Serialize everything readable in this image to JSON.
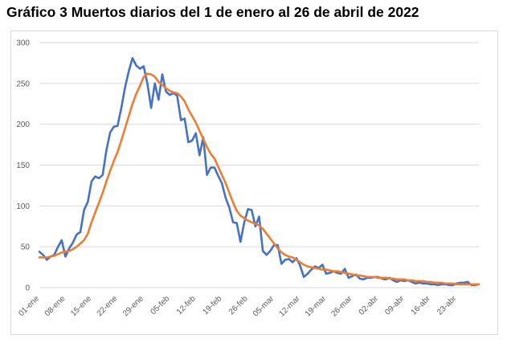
{
  "title": "Gráfico 3 Muertos diarios del 1 de enero al 26 de abril de 2022",
  "colors": {
    "series_daily": "#4472c4",
    "series_avg": "#ed7d31",
    "grid": "#d9d9d9",
    "axis_text": "#595959"
  },
  "chart_data": {
    "type": "line",
    "title": "Gráfico 3 Muertos diarios del 1 de enero al 26 de abril de 2022",
    "xlabel": "",
    "ylabel": "",
    "ylim": [
      0,
      300
    ],
    "yticks": [
      0,
      50,
      100,
      150,
      200,
      250,
      300
    ],
    "grid": true,
    "legend": "none",
    "x_tick_labels": [
      "01-ene",
      "08-ene",
      "15-ene",
      "22-ene",
      "29-ene",
      "05-feb",
      "12-feb",
      "19-feb",
      "26-feb",
      "05-mar",
      "12-mar",
      "19-mar",
      "26-mar",
      "02-abr",
      "09-abr",
      "16-abr",
      "23-abr"
    ],
    "x_start": "2022-01-01",
    "x_end": "2022-04-26",
    "series": [
      {
        "color": "#4472c4",
        "values": [
          44,
          40,
          34,
          38,
          40,
          50,
          58,
          38,
          48,
          55,
          65,
          68,
          95,
          105,
          130,
          136,
          134,
          138,
          168,
          190,
          197,
          198,
          220,
          245,
          265,
          281,
          272,
          268,
          271,
          250,
          220,
          250,
          230,
          261,
          240,
          236,
          238,
          235,
          205,
          207,
          178,
          180,
          189,
          162,
          184,
          138,
          147,
          147,
          137,
          128,
          110,
          98,
          80,
          79,
          56,
          80,
          96,
          95,
          75,
          87,
          45,
          40,
          45,
          52,
          52,
          29,
          34,
          35,
          31,
          36,
          27,
          13,
          17,
          22,
          26,
          24,
          28,
          17,
          18,
          20,
          18,
          17,
          23,
          12,
          14,
          16,
          11,
          10,
          12,
          12,
          13,
          13,
          11,
          10,
          12,
          9,
          7,
          9,
          8,
          9,
          7,
          5,
          6,
          5,
          5,
          4,
          4,
          3,
          4,
          4,
          3,
          3,
          5,
          6,
          6,
          7,
          3,
          3,
          4
        ],
        "x_range": "2022-01-01 to 2022-04-26"
      },
      {
        "color": "#ed7d31",
        "values": [
          37,
          37,
          37,
          38,
          39,
          41,
          43,
          44,
          45,
          47,
          50,
          54,
          58,
          66,
          80,
          92,
          104,
          116,
          130,
          143,
          155,
          166,
          180,
          195,
          210,
          225,
          237,
          247,
          258,
          262,
          261,
          258,
          252,
          248,
          244,
          241,
          239,
          238,
          234,
          228,
          218,
          210,
          202,
          192,
          182,
          172,
          164,
          158,
          148,
          138,
          128,
          116,
          104,
          94,
          88,
          85,
          82,
          80,
          78,
          76,
          72,
          66,
          60,
          54,
          48,
          43,
          40,
          38,
          37,
          34,
          31,
          28,
          26,
          25,
          24,
          23,
          22,
          22,
          21,
          20,
          20,
          19,
          18,
          17,
          16,
          15,
          15,
          14,
          13,
          13,
          13,
          12,
          12,
          12,
          11,
          11,
          10,
          10,
          10,
          9,
          9,
          8,
          8,
          8,
          7,
          7,
          6,
          6,
          6,
          5,
          5,
          5,
          4,
          4,
          4,
          4,
          4,
          4,
          4
        ],
        "x_range": "2022-01-01 to 2022-04-26"
      }
    ]
  }
}
